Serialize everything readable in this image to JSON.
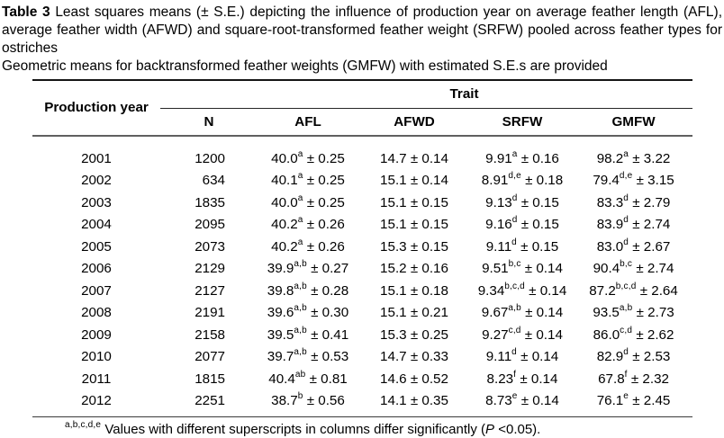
{
  "caption": {
    "title": "Table 3",
    "body": " Least squares means (± S.E.) depicting the influence of production year on average feather length (AFL), average feather width (AFWD) and square-root-transformed feather weight (SRFW) pooled across feather types for ostriches",
    "note": "Geometric means for backtransformed feather weights (GMFW) with estimated S.E.s are provided"
  },
  "table": {
    "row_header": "Production year",
    "span_header": "Trait",
    "columns": [
      "N",
      "AFL",
      "AFWD",
      "SRFW",
      "GMFW"
    ],
    "plus_minus": "±",
    "rows": [
      {
        "year": "2001",
        "n": "1200",
        "afl": {
          "value": "40.0",
          "sup": "a",
          "se": "0.25"
        },
        "afwd": {
          "value": "14.7",
          "sup": "",
          "se": "0.14"
        },
        "srfw": {
          "value": "9.91",
          "sup": "a",
          "se": "0.16"
        },
        "gmfw": {
          "value": "98.2",
          "sup": "a",
          "se": "3.22"
        }
      },
      {
        "year": "2002",
        "n": "634",
        "afl": {
          "value": "40.1",
          "sup": "a",
          "se": "0.25"
        },
        "afwd": {
          "value": "15.1",
          "sup": "",
          "se": "0.14"
        },
        "srfw": {
          "value": "8.91",
          "sup": "d,e",
          "se": "0.18"
        },
        "gmfw": {
          "value": "79.4",
          "sup": "d,e",
          "se": "3.15"
        }
      },
      {
        "year": "2003",
        "n": "1835",
        "afl": {
          "value": "40.0",
          "sup": "a",
          "se": "0.25"
        },
        "afwd": {
          "value": "15.1",
          "sup": "",
          "se": "0.15"
        },
        "srfw": {
          "value": "9.13",
          "sup": "d",
          "se": "0.15"
        },
        "gmfw": {
          "value": "83.3",
          "sup": "d",
          "se": "2.79"
        }
      },
      {
        "year": "2004",
        "n": "2095",
        "afl": {
          "value": "40.2",
          "sup": "a",
          "se": "0.26"
        },
        "afwd": {
          "value": "15.1",
          "sup": "",
          "se": "0.15"
        },
        "srfw": {
          "value": "9.16",
          "sup": "d",
          "se": "0.15"
        },
        "gmfw": {
          "value": "83.9",
          "sup": "d",
          "se": "2.74"
        }
      },
      {
        "year": "2005",
        "n": "2073",
        "afl": {
          "value": "40.2",
          "sup": "a",
          "se": "0.26"
        },
        "afwd": {
          "value": "15.3",
          "sup": "",
          "se": "0.15"
        },
        "srfw": {
          "value": "9.11",
          "sup": "d",
          "se": "0.15"
        },
        "gmfw": {
          "value": "83.0",
          "sup": "d",
          "se": "2.67"
        }
      },
      {
        "year": "2006",
        "n": "2129",
        "afl": {
          "value": "39.9",
          "sup": "a,b",
          "se": "0.27"
        },
        "afwd": {
          "value": "15.2",
          "sup": "",
          "se": "0.16"
        },
        "srfw": {
          "value": "9.51",
          "sup": "b,c",
          "se": "0.14"
        },
        "gmfw": {
          "value": "90.4",
          "sup": "b,c",
          "se": "2.74"
        }
      },
      {
        "year": "2007",
        "n": "2127",
        "afl": {
          "value": "39.8",
          "sup": "a,b",
          "se": "0.28"
        },
        "afwd": {
          "value": "15.1",
          "sup": "",
          "se": "0.18"
        },
        "srfw": {
          "value": "9.34",
          "sup": "b,c,d",
          "se": "0.14"
        },
        "gmfw": {
          "value": "87.2",
          "sup": "b,c,d",
          "se": "2.64"
        }
      },
      {
        "year": "2008",
        "n": "2191",
        "afl": {
          "value": "39.6",
          "sup": "a,b",
          "se": "0.30"
        },
        "afwd": {
          "value": "15.1",
          "sup": "",
          "se": "0.21"
        },
        "srfw": {
          "value": "9.67",
          "sup": "a,b",
          "se": "0.14"
        },
        "gmfw": {
          "value": "93.5",
          "sup": "a,b",
          "se": "2.73"
        }
      },
      {
        "year": "2009",
        "n": "2158",
        "afl": {
          "value": "39.5",
          "sup": "a,b",
          "se": "0.41"
        },
        "afwd": {
          "value": "15.3",
          "sup": "",
          "se": "0.25"
        },
        "srfw": {
          "value": "9.27",
          "sup": "c,d",
          "se": "0.14"
        },
        "gmfw": {
          "value": "86.0",
          "sup": "c,d",
          "se": "2.62"
        }
      },
      {
        "year": "2010",
        "n": "2077",
        "afl": {
          "value": "39.7",
          "sup": "a,b",
          "se": "0.53"
        },
        "afwd": {
          "value": "14.7",
          "sup": "",
          "se": "0.33"
        },
        "srfw": {
          "value": "9.11",
          "sup": "d",
          "se": "0.14"
        },
        "gmfw": {
          "value": "82.9",
          "sup": "d",
          "se": "2.53"
        }
      },
      {
        "year": "2011",
        "n": "1815",
        "afl": {
          "value": "40.4",
          "sup": "ab",
          "se": "0.81"
        },
        "afwd": {
          "value": "14.6",
          "sup": "",
          "se": "0.52"
        },
        "srfw": {
          "value": "8.23",
          "sup": "f",
          "se": "0.14"
        },
        "gmfw": {
          "value": "67.8",
          "sup": "f",
          "se": "2.32"
        }
      },
      {
        "year": "2012",
        "n": "2251",
        "afl": {
          "value": "38.7",
          "sup": "b",
          "se": "0.56"
        },
        "afwd": {
          "value": "14.1",
          "sup": "",
          "se": "0.35"
        },
        "srfw": {
          "value": "8.73",
          "sup": "e",
          "se": "0.14"
        },
        "gmfw": {
          "value": "76.1",
          "sup": "e",
          "se": "2.45"
        }
      }
    ]
  },
  "footnote": {
    "superscripts": "a,b,c,d,e",
    "text": " Values with different superscripts in columns differ significantly (",
    "p_symbol": "P",
    "text_after": " <0.05)."
  }
}
